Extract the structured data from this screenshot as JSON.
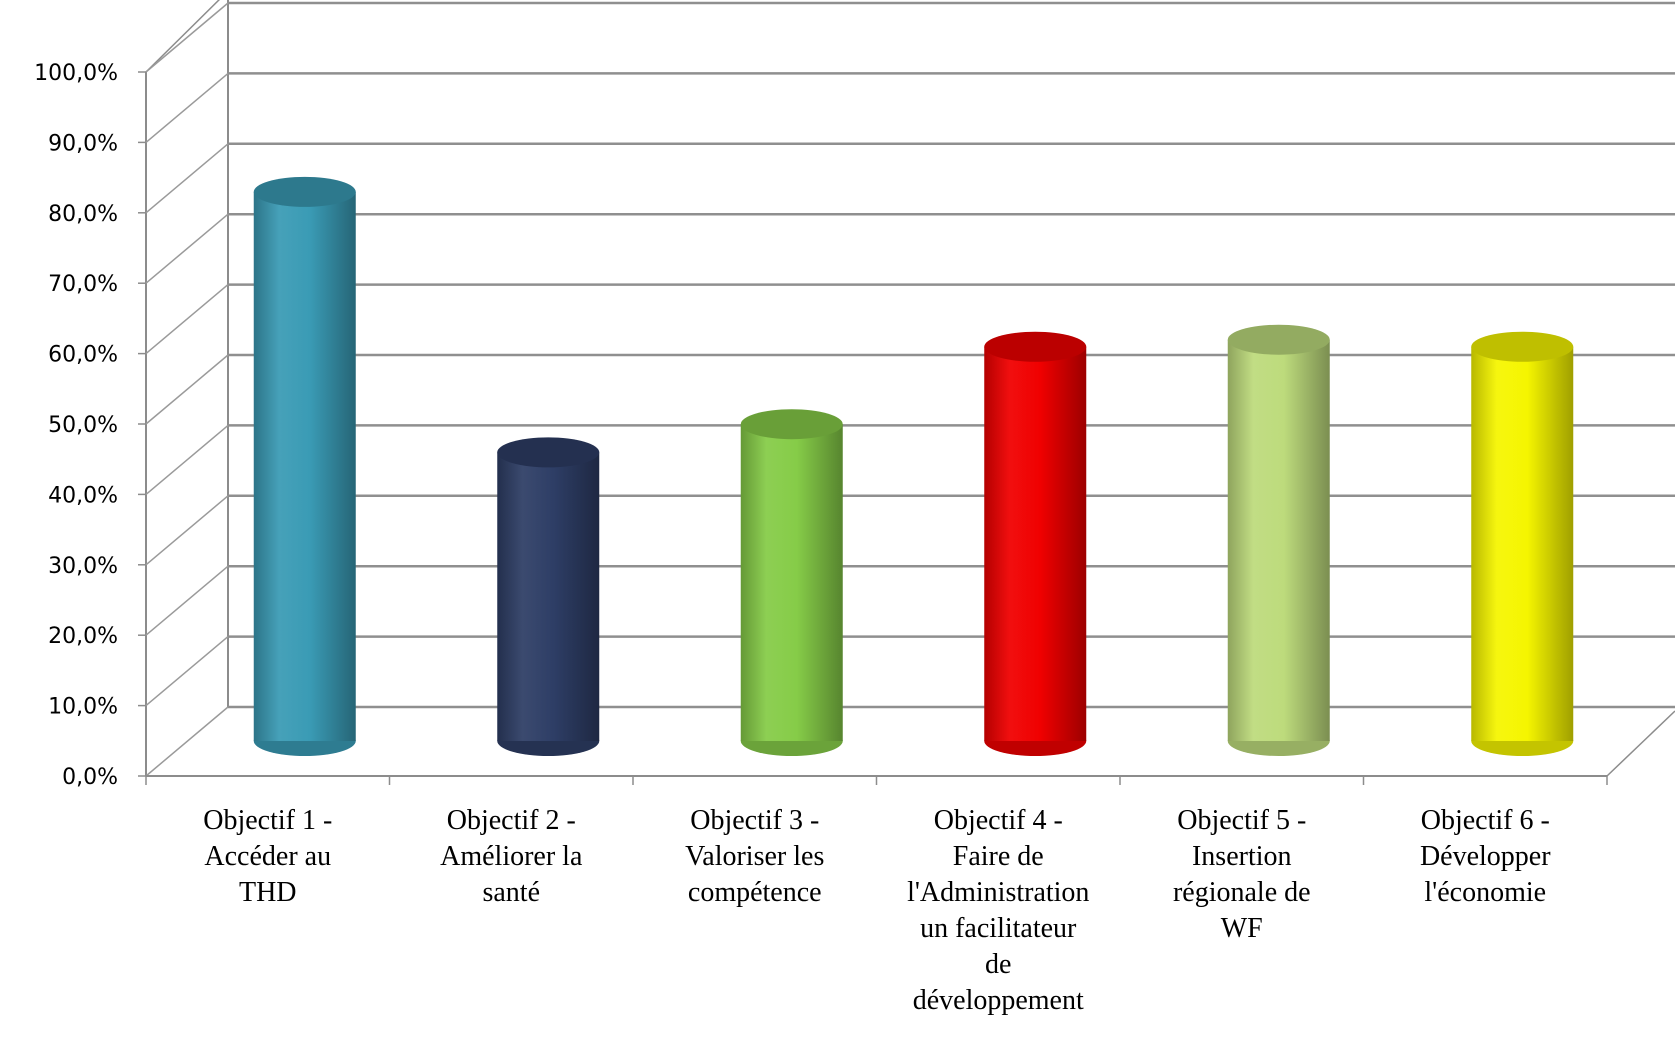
{
  "chart_data": {
    "type": "bar",
    "style": "3d-cylinder",
    "categories": [
      [
        "Objectif 1 -",
        "Accéder au",
        "THD"
      ],
      [
        "Objectif 2 -",
        "Améliorer la",
        "santé"
      ],
      [
        "Objectif 3 -",
        "Valoriser les",
        "compétence"
      ],
      [
        "Objectif 4 -",
        "Faire de",
        "l'Administration",
        "un facilitateur",
        "de",
        "développement"
      ],
      [
        "Objectif 5 -",
        "Insertion",
        "régionale de",
        "WF"
      ],
      [
        "Objectif 6 -",
        "Développer",
        "l'économie"
      ]
    ],
    "values": [
      0.78,
      0.41,
      0.45,
      0.56,
      0.57,
      0.56
    ],
    "colors": [
      "#3a9bb5",
      "#2e3e66",
      "#86cc48",
      "#f00000",
      "#bddb7c",
      "#f5f500"
    ],
    "y_ticks": [
      "0,0%",
      "10,0%",
      "20,0%",
      "30,0%",
      "40,0%",
      "50,0%",
      "60,0%",
      "70,0%",
      "80,0%",
      "90,0%",
      "100,0%"
    ],
    "ylim": [
      0,
      1
    ],
    "title": "",
    "xlabel": "",
    "ylabel": "",
    "grid": true,
    "legend": "none"
  }
}
